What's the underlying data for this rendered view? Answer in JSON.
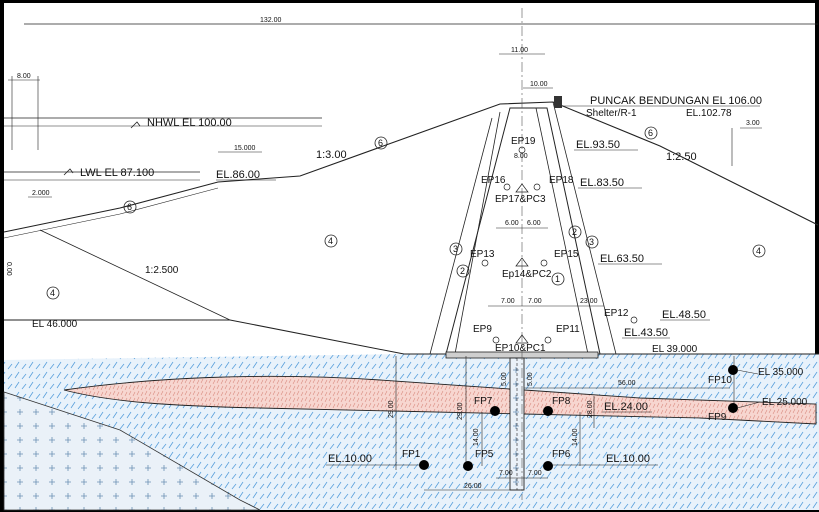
{
  "dimensions": {
    "top_width": "132.00",
    "crest_width": "11.00",
    "crest_part": "10.00",
    "left_offset": "8.00",
    "berm_up": "15.000",
    "berm_left": "2.000",
    "right_drop": "3.00",
    "core_top": "8.00",
    "core_mid_l": "6.00",
    "core_mid_r": "6.00",
    "core_low_l": "7.00",
    "core_low_r": "7.00",
    "filter_w": "23.00",
    "found_w": "56.00",
    "found_depth": "29.00",
    "found_depth2": "29.00",
    "pile_h_l": "14.00",
    "pile_h_r": "14.00",
    "cut_h_l": "5.00",
    "cut_h_r": "5.00",
    "base_gap_l": "7.00",
    "base_gap_r": "7.00",
    "base_w": "26.00",
    "left_edge": "0.00",
    "el_24": "28.00"
  },
  "labels": {
    "crest": "PUNCAK BENDUNGAN EL 106.00",
    "shelter": "Shelter/R-1",
    "shelter_el": "EL.102.78",
    "nhwl": "NHWL   EL 100.00",
    "lwl": "LWL   EL 87.100",
    "slope_up1": "1:3.00",
    "slope_up2": "1:2.500",
    "slope_dn": "1:2.50",
    "el_86": "EL.86.00",
    "el_93": "EL.93.50",
    "el_83": "EL.83.50",
    "el_63": "EL.63.50",
    "el_48": "EL.48.50",
    "el_43": "EL.43.50",
    "el_46": "EL 46.000",
    "el_39": "EL 39.000",
    "el_35": "EL 35.000",
    "el_25": "EL 25.000",
    "el_24": "EL.24.00",
    "el_10l": "EL.10.00",
    "el_10r": "EL.10.00"
  },
  "zones": [
    "1",
    "2",
    "3",
    "4",
    "6"
  ],
  "piezometers": {
    "ep19": "EP19",
    "ep16": "EP16",
    "ep18": "EP18",
    "ep17": "EP17&PC3",
    "ep13": "EP13",
    "ep15": "EP15",
    "ep14": "Ep14&PC2",
    "ep12": "EP12",
    "ep9": "EP9",
    "ep11": "EP11",
    "ep10": "EP10&PC1",
    "fp1": "FP1",
    "fp5": "FP5",
    "fp6": "FP6",
    "fp7": "FP7",
    "fp8": "FP8",
    "fp9": "FP9",
    "fp10": "FP10"
  }
}
